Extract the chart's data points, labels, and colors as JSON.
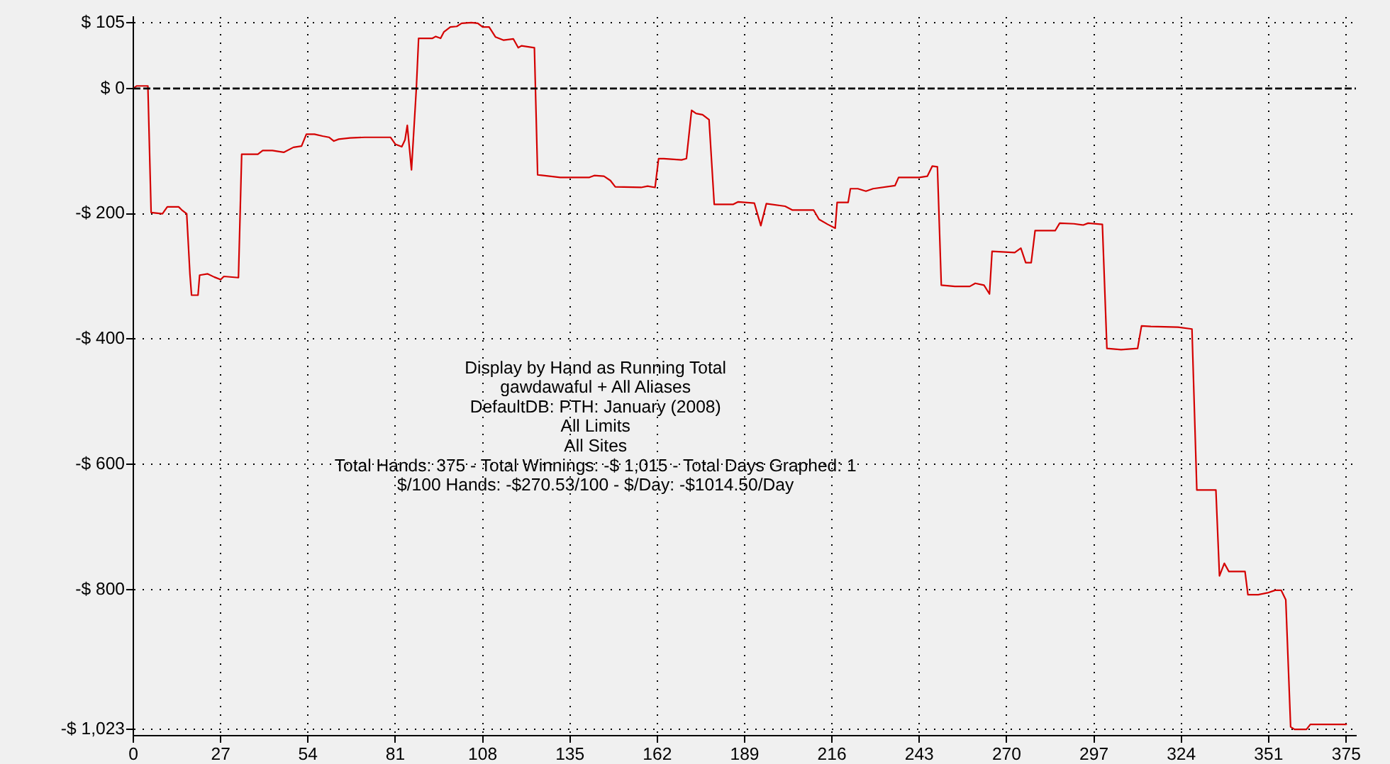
{
  "chart_data": {
    "type": "line",
    "x": [
      0,
      1,
      4.5,
      5.5,
      9,
      10.5,
      14,
      15,
      16.5,
      17.5,
      18,
      20,
      20.5,
      23,
      25,
      27,
      28,
      32.5,
      33.5,
      38.5,
      40,
      43,
      46.5,
      49.5,
      52,
      53.5,
      56,
      58.5,
      60.5,
      62,
      63.5,
      67,
      71.5,
      79.5,
      81,
      83,
      84,
      84.7,
      86,
      87.5,
      88.2,
      92.5,
      93.5,
      95,
      96,
      98,
      100,
      101.5,
      104.5,
      106.5,
      108,
      110,
      112,
      114.5,
      117.5,
      119,
      120,
      124,
      125,
      132,
      141,
      142.5,
      145.5,
      147.5,
      149,
      157,
      159,
      161.3,
      162.4,
      164,
      169.5,
      171,
      172.6,
      174,
      176,
      178,
      179.6,
      185.5,
      187,
      192,
      194,
      195.7,
      201.5,
      203.7,
      210.3,
      212,
      214.7,
      217,
      217.6,
      221,
      221.7,
      224,
      226.5,
      228.7,
      235.5,
      236.6,
      243,
      245.5,
      247,
      248.6,
      249.8,
      254,
      258.6,
      260.3,
      263,
      264.7,
      265.5,
      272.5,
      274.4,
      275.9,
      277.6,
      278.8,
      285,
      286.4,
      290.8,
      293.7,
      295.2,
      299.6,
      301,
      305.4,
      310.5,
      311.7,
      314.6,
      323,
      327.3,
      328.8,
      334.7,
      335.8,
      337.3,
      338.7,
      343.7,
      344.6,
      347.8,
      350.7,
      353,
      354.9,
      356.3,
      357.8,
      359,
      362.7,
      363.9,
      375
    ],
    "series": [
      {
        "color": "#d40000",
        "values": [
          0,
          4,
          4,
          -198,
          -200,
          -189,
          -189,
          -194,
          -200,
          -296,
          -330,
          -330,
          -298,
          -296,
          -301,
          -305,
          -300,
          -302,
          -105,
          -105,
          -99,
          -99,
          -102,
          -94,
          -92,
          -73,
          -73,
          -76,
          -78,
          -84,
          -81,
          -79,
          -78,
          -78,
          -89,
          -93,
          -82,
          -59,
          -130,
          0,
          80,
          80,
          83,
          80,
          90,
          98,
          99,
          104,
          105,
          104,
          98,
          98,
          82,
          77,
          79,
          65,
          68,
          65,
          -138,
          -142,
          -142,
          -139,
          -140,
          -147,
          -157,
          -158,
          -156,
          -158,
          -112,
          -112,
          -114,
          -112,
          -35,
          -40,
          -42,
          -50,
          -185,
          -185,
          -181,
          -183,
          -219,
          -184,
          -188,
          -194,
          -194,
          -209,
          -217,
          -223,
          -182,
          -182,
          -160,
          -160,
          -164,
          -160,
          -155,
          -142,
          -142,
          -140,
          -124,
          -125,
          -314,
          -316,
          -316,
          -311,
          -314,
          -328,
          -260,
          -262,
          -255,
          -278,
          -278,
          -227,
          -227,
          -215,
          -216,
          -218,
          -215,
          -217,
          -415,
          -417,
          -415,
          -379,
          -380,
          -381,
          -384,
          -641,
          -641,
          -778,
          -758,
          -771,
          -771,
          -808,
          -808,
          -805,
          -801,
          -801,
          -816,
          -1019,
          -1023,
          -1023,
          -1015,
          -1015
        ]
      }
    ],
    "xlim": [
      0,
      378
    ],
    "ylim": [
      -1033,
      114
    ],
    "xticks": [
      0,
      27,
      54,
      81,
      108,
      135,
      162,
      189,
      216,
      243,
      270,
      297,
      324,
      351,
      375
    ],
    "yticks": [
      {
        "value": 105,
        "label": "$ 105"
      },
      {
        "value": 0,
        "label": "$ 0"
      },
      {
        "value": -200,
        "label": "-$ 200"
      },
      {
        "value": -400,
        "label": "-$ 400"
      },
      {
        "value": -600,
        "label": "-$ 600"
      },
      {
        "value": -800,
        "label": "-$ 800"
      },
      {
        "value": -1023,
        "label": "-$ 1,023"
      }
    ],
    "grid": true,
    "legend": false,
    "marker": "none",
    "ref_lines": [
      {
        "axis": "y",
        "value": 0,
        "color": "#000000",
        "line_style": "dashed"
      }
    ],
    "annotations": [
      "Display by Hand as Running Total",
      "gawdawaful + All Aliases",
      "DefaultDB: PTH: January (2008)",
      "All Limits",
      "All Sites",
      "Total Hands: 375 - Total Winnings: -$ 1,015 - Total Days Graphed: 1",
      "$/100 Hands: -$270.53/100 - $/Day: -$1014.50/Day"
    ]
  }
}
